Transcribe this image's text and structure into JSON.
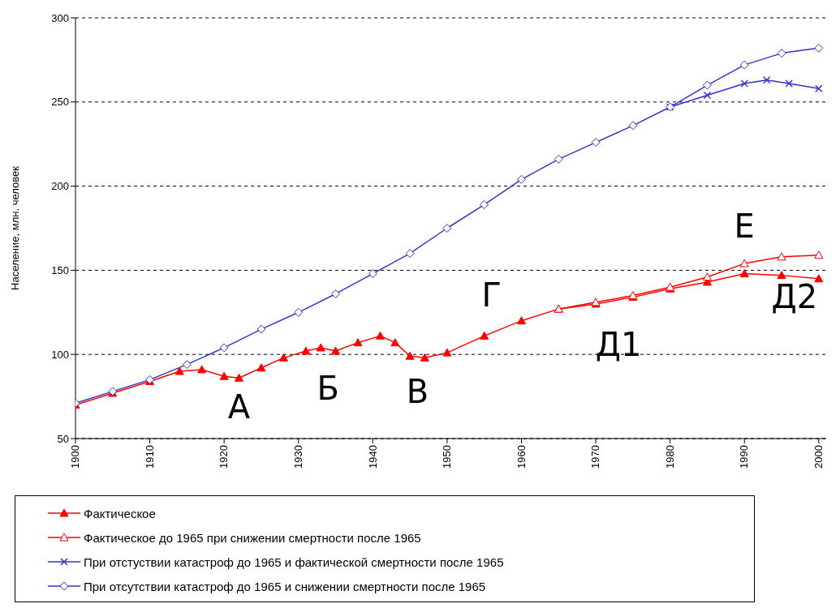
{
  "chart_data": {
    "type": "line",
    "ylabel": "Население, млн. человек",
    "xlim": [
      1900,
      2001
    ],
    "xticks": [
      1900,
      1910,
      1920,
      1930,
      1940,
      1950,
      1960,
      1970,
      1980,
      1990,
      2000
    ],
    "ylim": [
      50,
      300
    ],
    "yticks": [
      50,
      100,
      150,
      200,
      250,
      300
    ],
    "grid": "y",
    "legend": "bottom",
    "line_style": "solid",
    "series": [
      {
        "name": "Фактическое",
        "color": "#ff0000",
        "marker": "triangle",
        "x": [
          1900,
          1905,
          1910,
          1914,
          1917,
          1920,
          1922,
          1925,
          1928,
          1931,
          1933,
          1935,
          1938,
          1941,
          1943,
          1945,
          1947,
          1950,
          1955,
          1960,
          1965,
          1970,
          1975,
          1980,
          1985,
          1990,
          1995,
          2000
        ],
        "values": [
          70,
          77,
          84,
          90,
          91,
          87,
          86,
          92,
          98,
          102,
          104,
          102,
          107,
          111,
          107,
          99,
          98,
          101,
          111,
          120,
          127,
          130,
          134,
          139,
          143,
          148,
          147,
          145
        ]
      },
      {
        "name": "Фактическое до 1965 при снижении смертности после 1965",
        "color": "#ff0000",
        "marker": "triangle",
        "x": [
          1965,
          1970,
          1975,
          1980,
          1985,
          1990,
          1995,
          2000
        ],
        "values": [
          127,
          131,
          135,
          140,
          146,
          154,
          158,
          159
        ]
      },
      {
        "name": "При отстуствии катастроф до 1965 и фактической смертности после 1965",
        "color": "#3333cc",
        "marker": "cross",
        "x": [
          1980,
          1985,
          1990,
          1993,
          1996,
          2000
        ],
        "values": [
          247,
          254,
          261,
          263,
          261,
          258
        ]
      },
      {
        "name": "При отсутствии катастроф до 1965 и снижении смертности после 1965",
        "color": "#3333cc",
        "marker": "diamond",
        "x": [
          1900,
          1905,
          1910,
          1915,
          1920,
          1925,
          1930,
          1935,
          1940,
          1945,
          1950,
          1955,
          1960,
          1965,
          1970,
          1975,
          1980,
          1985,
          1990,
          1995,
          2000
        ],
        "values": [
          71,
          78,
          85,
          94,
          104,
          115,
          125,
          136,
          148,
          160,
          175,
          189,
          204,
          216,
          226,
          236,
          247,
          260,
          272,
          279,
          282
        ]
      }
    ],
    "annotations": [
      {
        "text": "А",
        "x": 1922,
        "y": 86
      },
      {
        "text": "Б",
        "x": 1933,
        "y": 104
      },
      {
        "text": "В",
        "x": 1947,
        "y": 98
      },
      {
        "text": "Г",
        "x": 1955,
        "y": 111
      },
      {
        "text": "Д1",
        "x": 1970,
        "y": 130
      },
      {
        "text": "Е",
        "x": 1990,
        "y": 154
      },
      {
        "text": "Д2",
        "x": 2000,
        "y": 145
      }
    ]
  }
}
